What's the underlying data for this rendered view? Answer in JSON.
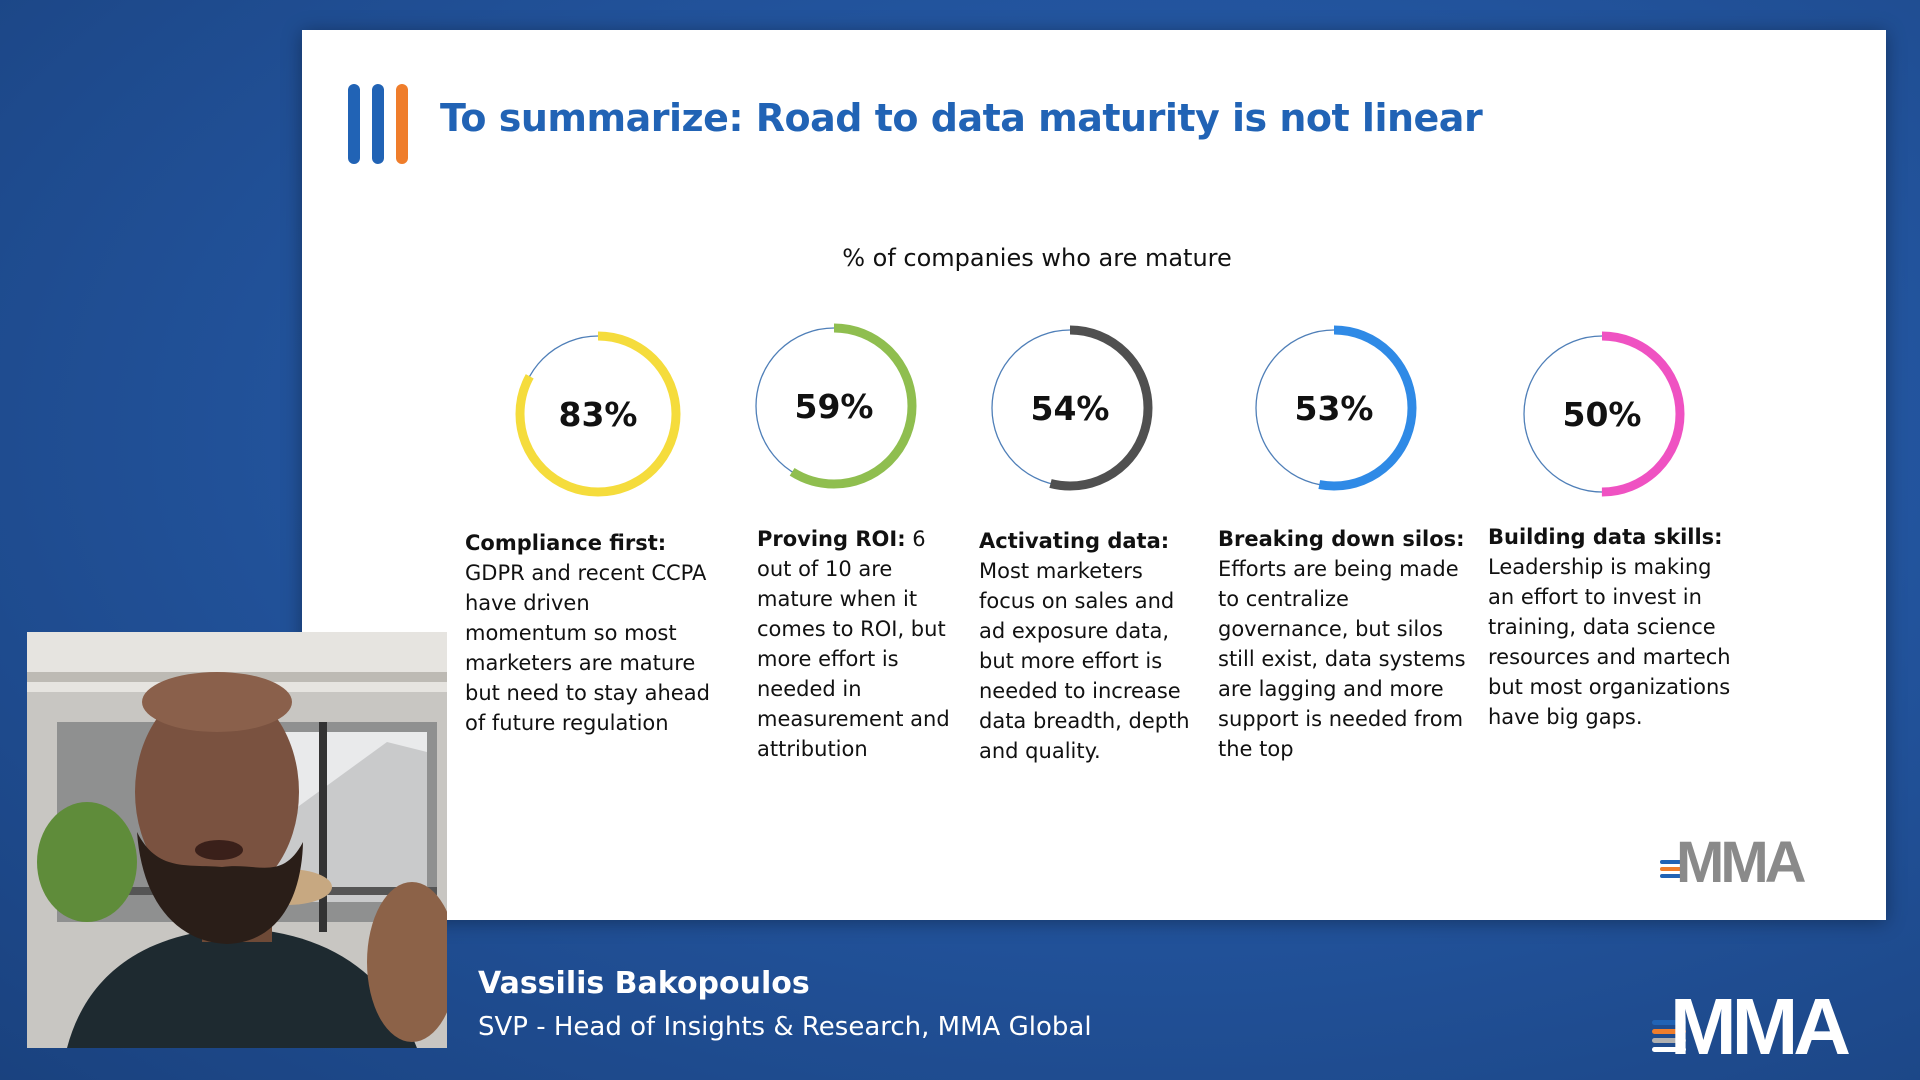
{
  "slide": {
    "title": "To summarize: Road to data maturity is not linear",
    "caption": "% of companies who are mature",
    "logo_text": "MMA"
  },
  "chart_data": {
    "type": "pie",
    "title": "% of companies who are mature",
    "categories": [
      "Compliance first",
      "Proving ROI",
      "Activating data",
      "Breaking down silos",
      "Building data skills"
    ],
    "values": [
      83,
      59,
      54,
      53,
      50
    ],
    "unit": "%",
    "colors": [
      "#f5dc3c",
      "#8fbe4f",
      "#505050",
      "#2f8ae6",
      "#ef52c2"
    ]
  },
  "metrics": [
    {
      "value_label": "83%",
      "heading": "Compliance first:",
      "body": "GDPR and recent CCPA have driven momentum so most marketers are mature but need to stay ahead of future regulation"
    },
    {
      "value_label": "59%",
      "heading": "Proving ROI:",
      "body": " 6 out of 10 are mature when it comes to ROI, but more effort is needed in measurement and attribution"
    },
    {
      "value_label": "54%",
      "heading": "Activating data:",
      "body": "Most marketers focus on sales and ad exposure data, but more effort is needed to increase data breadth, depth and quality."
    },
    {
      "value_label": "53%",
      "heading": "Breaking down silos:",
      "body": "Efforts are being made to centralize governance, but silos still exist, data systems are lagging and more support is needed from the top"
    },
    {
      "value_label": "50%",
      "heading": "Building data skills:",
      "body": "Leadership is making an effort to invest in training, data science resources and martech but most organizations have big gaps."
    }
  ],
  "speaker": {
    "name": "Vassilis Bakopoulos",
    "role": "SVP - Head of Insights & Research, MMA Global"
  },
  "brand": {
    "logo_text": "MMA",
    "logo_stripe_colors": [
      "#2163b5",
      "#ef7d2b",
      "#b0b0b0"
    ]
  },
  "icons": {
    "title_bars": "three-vertical-bars-icon",
    "logo_stripes": "stacked-lines-icon"
  }
}
